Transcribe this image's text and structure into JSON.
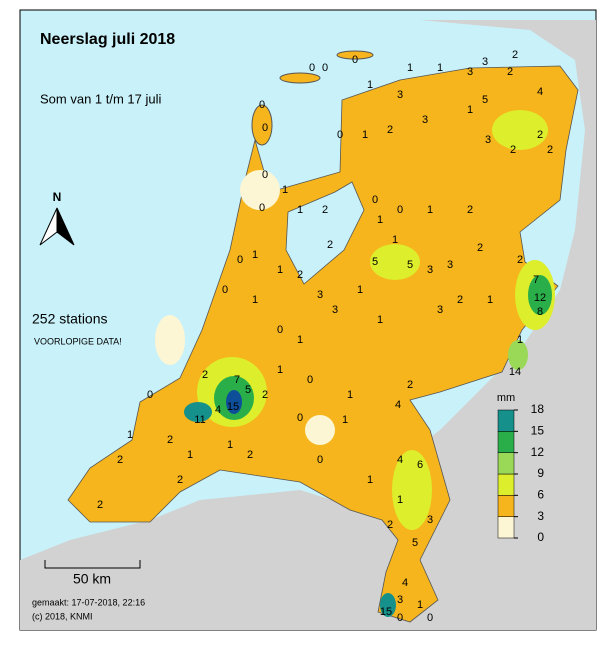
{
  "header": {
    "title": "Neerslag juli 2018",
    "subtitle": "Som van 1 t/m 17 juli"
  },
  "north": "N",
  "stations_count": "252 stations",
  "note": "VOORLOPIGE DATA!",
  "legend": {
    "unit": "mm",
    "levels": [
      0,
      3,
      6,
      9,
      12,
      15,
      18
    ],
    "colors": [
      "#fdf6d4",
      "#f6b51c",
      "#dcee2c",
      "#9ad858",
      "#2aae4a",
      "#16908a",
      "#0e4f9a"
    ]
  },
  "scale": "50 km",
  "footer": {
    "made": "gemaakt: 17-07-2018, 22:16",
    "copyright": "(c) 2018, KNMI"
  },
  "stations": [
    0,
    0,
    0,
    1,
    1,
    3,
    3,
    2,
    2,
    0,
    0,
    1,
    3,
    5,
    4,
    2,
    1,
    0,
    1,
    2,
    3,
    3,
    2,
    2,
    0,
    1,
    0,
    1,
    2,
    0,
    0,
    1,
    2,
    5,
    5,
    3,
    1,
    2,
    2,
    1,
    3,
    1,
    7,
    12,
    8,
    0,
    1,
    1,
    2,
    0,
    1,
    3,
    1,
    2,
    3,
    0,
    1,
    1,
    7,
    5,
    15,
    2,
    2,
    1,
    0,
    11,
    4,
    1,
    2,
    2,
    1,
    4,
    6,
    1,
    2,
    1,
    3,
    0,
    1,
    2,
    1,
    2,
    0,
    1,
    14,
    4,
    3,
    1,
    15,
    0,
    5,
    0,
    0,
    1,
    2,
    3,
    2,
    4,
    2
  ]
}
